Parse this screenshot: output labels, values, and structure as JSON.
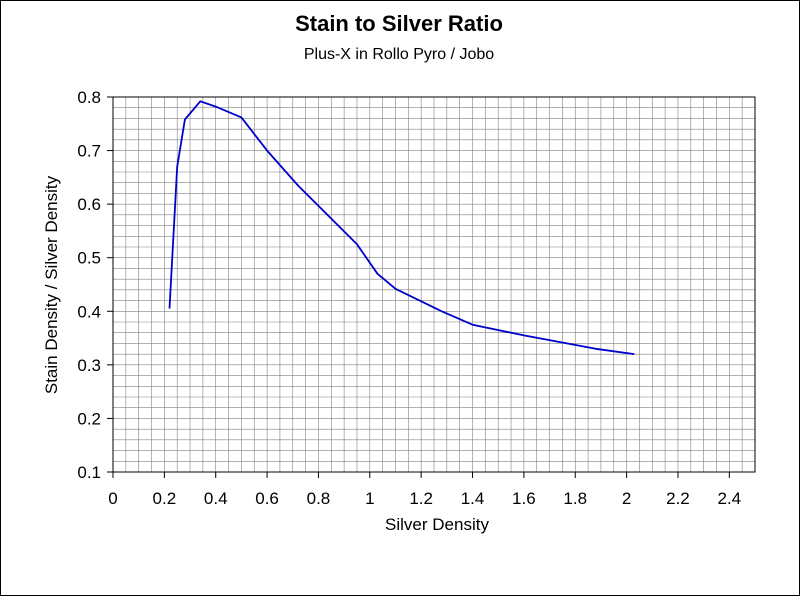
{
  "chart_data": {
    "type": "line",
    "title": "Stain to Silver Ratio",
    "subtitle": "Plus-X in Rollo Pyro / Jobo",
    "xlabel": "Silver Density",
    "ylabel": "Stain Density / Silver Density",
    "xlim": [
      0,
      2.5
    ],
    "ylim": [
      0.1,
      0.8
    ],
    "x_major_ticks": [
      "0",
      "0.2",
      "0.4",
      "0.6",
      "0.8",
      "1",
      "1.2",
      "1.4",
      "1.6",
      "1.8",
      "2",
      "2.2",
      "2.4"
    ],
    "y_major_ticks": [
      "0.8",
      "0.7",
      "0.6",
      "0.5",
      "0.4",
      "0.3",
      "0.2",
      "0.1"
    ],
    "grid": true,
    "series": [
      {
        "color": "#0000cc",
        "x": [
          0.22,
          0.25,
          0.28,
          0.34,
          0.4,
          0.5,
          0.6,
          0.72,
          0.95,
          1.03,
          1.1,
          1.28,
          1.4,
          1.6,
          1.88,
          2.03
        ],
        "y": [
          0.405,
          0.67,
          0.758,
          0.792,
          0.782,
          0.762,
          0.7,
          0.635,
          0.525,
          0.47,
          0.442,
          0.4,
          0.375,
          0.355,
          0.33,
          0.32
        ]
      }
    ]
  }
}
